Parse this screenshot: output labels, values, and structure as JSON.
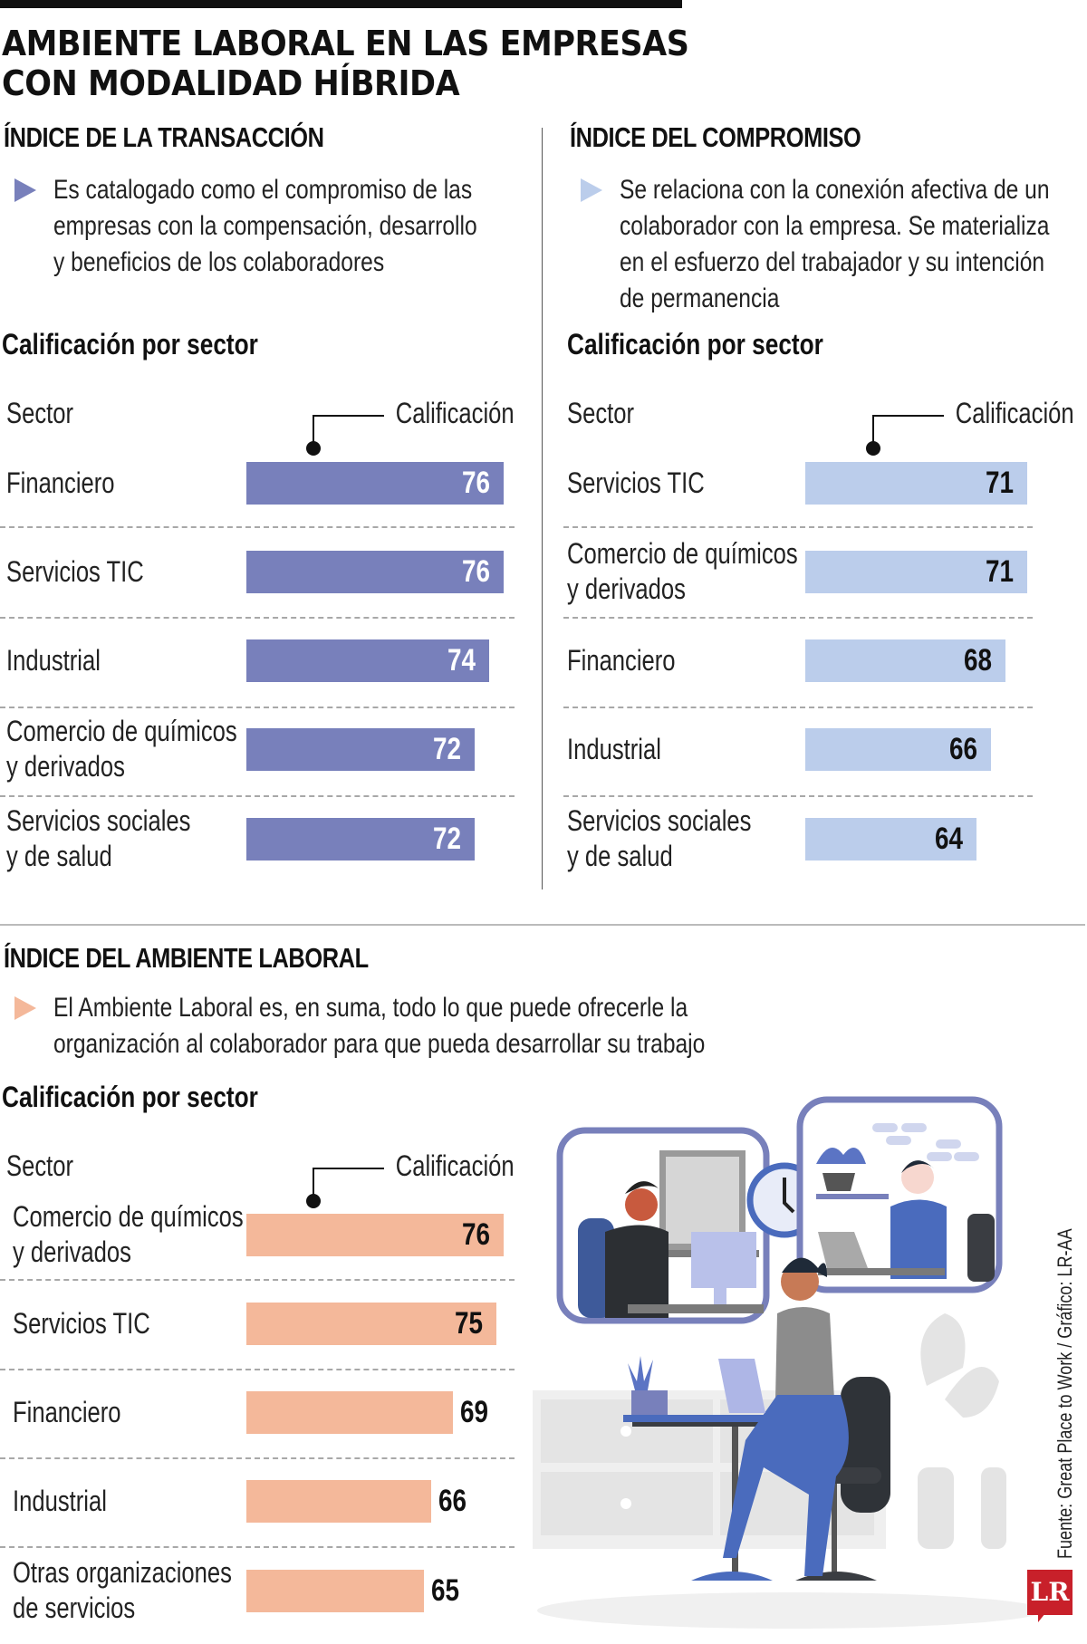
{
  "title": {
    "line1": "AMBIENTE LABORAL EN LAS EMPRESAS",
    "line2": "CON MODALIDAD HÍBRIDA"
  },
  "colors": {
    "transaccion": "#7880BB",
    "compromiso": "#BBCDEB",
    "ambiente": "#F4B89A"
  },
  "sections": {
    "transaccion": {
      "heading": "ÍNDICE DE LA TRANSACCIÓN",
      "description": [
        "Es catalogado como el compromiso de las",
        "empresas con la compensación, desarrollo",
        "y beneficios de los colaboradores"
      ],
      "subheading": "Calificación por sector",
      "col_sector": "Sector",
      "col_value": "Calificación"
    },
    "compromiso": {
      "heading": "ÍNDICE DEL COMPROMISO",
      "description": [
        "Se relaciona con la conexión afectiva de un",
        "colaborador con la empresa. Se materializa",
        "en el esfuerzo del trabajador y su intención",
        "de permanencia"
      ],
      "subheading": "Calificación por sector",
      "col_sector": "Sector",
      "col_value": "Calificación"
    },
    "ambiente": {
      "heading": "ÍNDICE DEL AMBIENTE LABORAL",
      "description": [
        "El Ambiente Laboral es, en suma, todo lo que puede ofrecerle la",
        "organización al colaborador para que pueda desarrollar su trabajo"
      ],
      "subheading": "Calificación por sector",
      "col_sector": "Sector",
      "col_value": "Calificación"
    }
  },
  "chart_data": [
    {
      "type": "bar",
      "orientation": "horizontal",
      "title": "ÍNDICE DE LA TRANSACCIÓN — Calificación por sector",
      "xlabel": "Calificación",
      "ylabel": "Sector",
      "categories": [
        [
          "Financiero"
        ],
        [
          "Servicios TIC"
        ],
        [
          "Industrial"
        ],
        [
          "Comercio de químicos",
          "y derivados"
        ],
        [
          "Servicios sociales",
          "y de salud"
        ]
      ],
      "values": [
        76,
        76,
        74,
        72,
        72
      ],
      "value_labels": [
        "76",
        "76",
        "74",
        "72",
        "72"
      ],
      "color": "#7880BB",
      "grid": false
    },
    {
      "type": "bar",
      "orientation": "horizontal",
      "title": "ÍNDICE DEL COMPROMISO — Calificación por sector",
      "xlabel": "Calificación",
      "ylabel": "Sector",
      "categories": [
        [
          "Servicios TIC"
        ],
        [
          "Comercio de químicos",
          "y derivados"
        ],
        [
          "Financiero"
        ],
        [
          "Industrial"
        ],
        [
          "Servicios sociales",
          "y de salud"
        ]
      ],
      "values": [
        71,
        71,
        68,
        66,
        64
      ],
      "value_labels": [
        "71",
        "71",
        "68",
        "66",
        "64"
      ],
      "color": "#BBCDEB",
      "grid": false
    },
    {
      "type": "bar",
      "orientation": "horizontal",
      "title": "ÍNDICE DEL AMBIENTE LABORAL — Calificación por sector",
      "xlabel": "Calificación",
      "ylabel": "Sector",
      "categories": [
        [
          "Comercio de químicos",
          "y derivados"
        ],
        [
          "Servicios TIC"
        ],
        [
          "Financiero"
        ],
        [
          "Industrial"
        ],
        [
          "Otras organizaciones",
          "de servicios"
        ]
      ],
      "values": [
        76,
        75,
        69,
        66,
        65
      ],
      "value_labels": [
        "76",
        "75",
        "69",
        "66",
        "65"
      ],
      "color": "#F4B89A",
      "grid": false
    }
  ],
  "footer": {
    "source": "Fuente: Great Place to Work / Gráfico: LR-AA",
    "logo": "LR"
  },
  "illustration": {
    "description": "hybrid-work-illustration"
  }
}
